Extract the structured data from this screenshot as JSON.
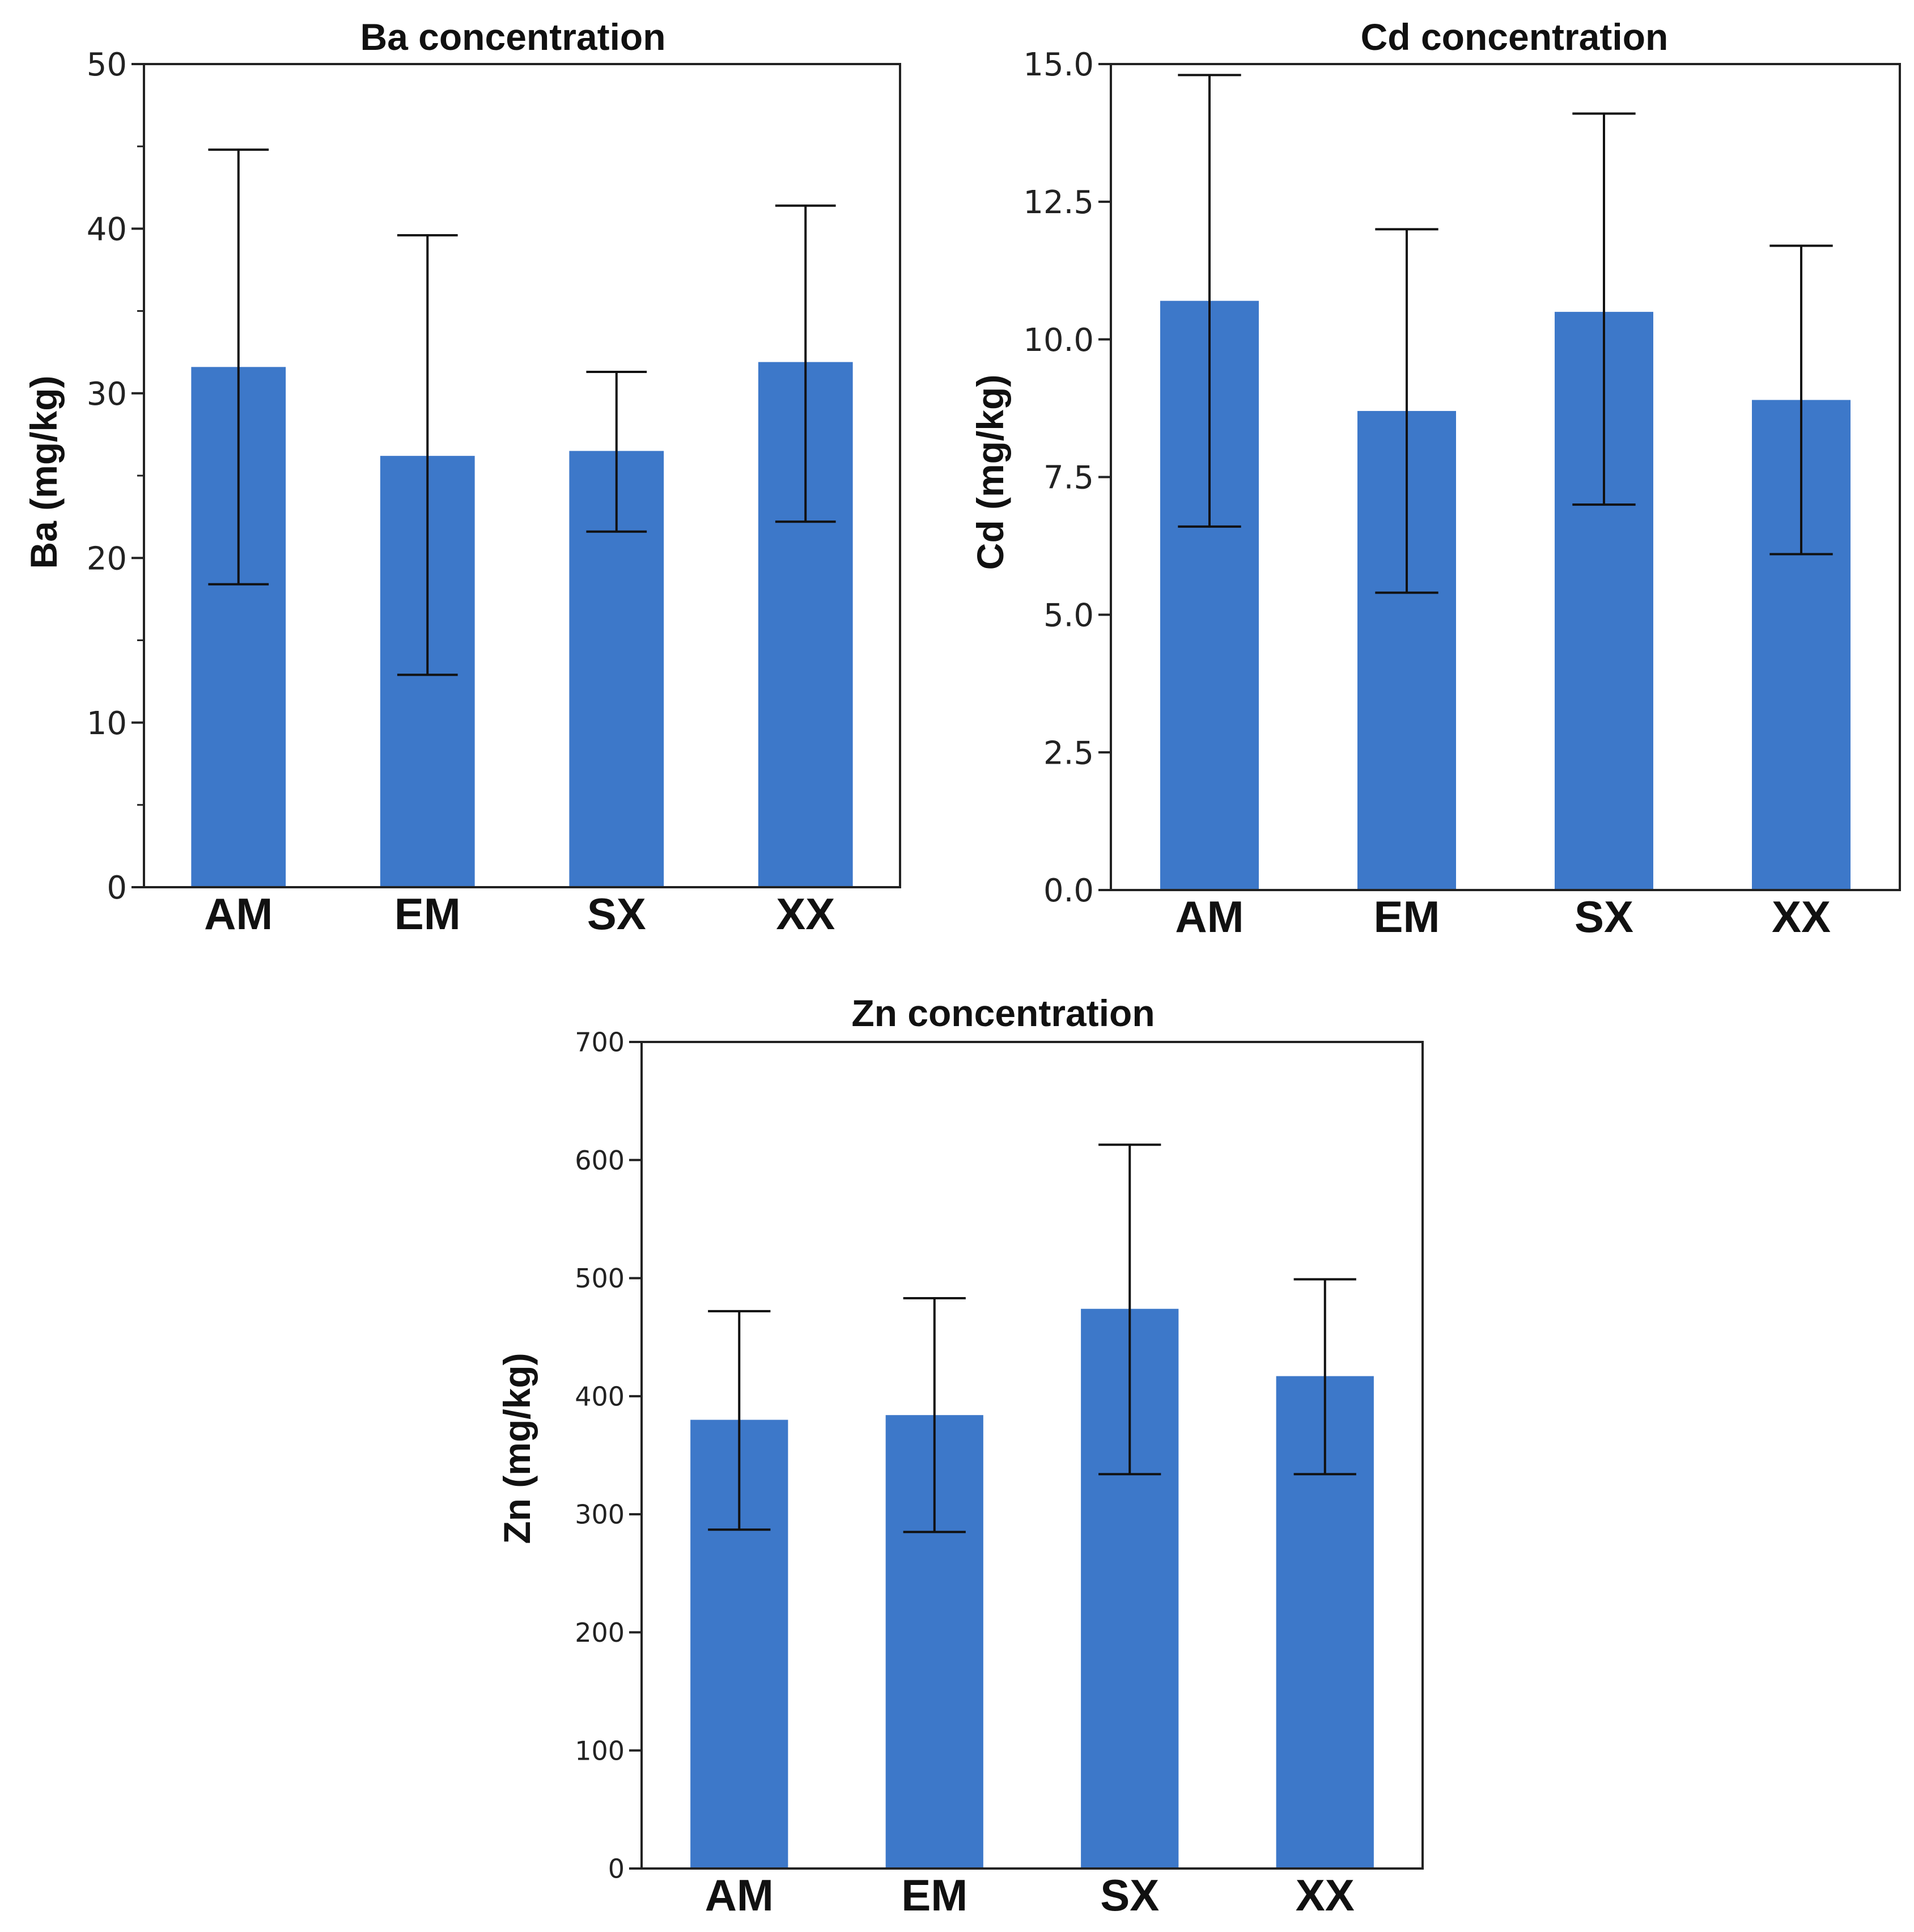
{
  "figure": {
    "bar_color": "#3d78c9",
    "axis_color": "#222222",
    "error_bar_color": "#111111"
  },
  "chart_data": [
    {
      "type": "bar",
      "title": "Ba concentration",
      "ylabel": "Ba (mg/kg)",
      "xlabel": "",
      "categories": [
        "AM",
        "EM",
        "SX",
        "XX"
      ],
      "values": [
        31.6,
        26.2,
        26.5,
        31.9
      ],
      "error_low": [
        18.4,
        12.9,
        21.6,
        22.2
      ],
      "error_high": [
        44.8,
        39.6,
        31.3,
        41.4
      ],
      "ylim": [
        0,
        50
      ],
      "yticks": [
        0,
        10,
        20,
        30,
        40,
        50
      ],
      "ytick_labels": [
        "0",
        "10",
        "20",
        "30",
        "40",
        "50"
      ],
      "minor_ticks": true,
      "grid": false
    },
    {
      "type": "bar",
      "title": "Cd concentration",
      "ylabel": "Cd (mg/kg)",
      "xlabel": "",
      "categories": [
        "AM",
        "EM",
        "SX",
        "XX"
      ],
      "values": [
        10.7,
        8.7,
        10.5,
        8.9
      ],
      "error_low": [
        6.6,
        5.4,
        7.0,
        6.1
      ],
      "error_high": [
        14.8,
        12.0,
        14.1,
        11.7
      ],
      "ylim": [
        0,
        15
      ],
      "yticks": [
        0,
        2.5,
        5,
        7.5,
        10,
        12.5,
        15
      ],
      "ytick_labels": [
        "0.0",
        "2.5",
        "5.0",
        "7.5",
        "10.0",
        "12.5",
        "15.0"
      ],
      "minor_ticks": false,
      "grid": false
    },
    {
      "type": "bar",
      "title": "Zn concentration",
      "ylabel": "Zn (mg/kg)",
      "xlabel": "",
      "categories": [
        "AM",
        "EM",
        "SX",
        "XX"
      ],
      "values": [
        380,
        384,
        474,
        417
      ],
      "error_low": [
        287,
        285,
        334,
        334
      ],
      "error_high": [
        472,
        483,
        613,
        499
      ],
      "ylim": [
        0,
        700
      ],
      "yticks": [
        0,
        100,
        200,
        300,
        400,
        500,
        600,
        700
      ],
      "ytick_labels": [
        "0",
        "100",
        "200",
        "300",
        "400",
        "500",
        "600",
        "700"
      ],
      "minor_ticks": false,
      "grid": false
    }
  ]
}
